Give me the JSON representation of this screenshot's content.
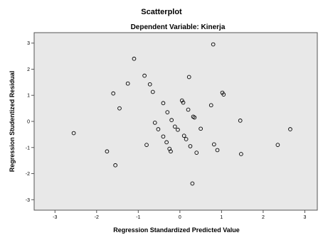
{
  "chart_data": {
    "type": "scatter",
    "title": "Scatterplot",
    "subtitle": "Dependent Variable: Kinerja",
    "xlabel": "Regression Standardized Predicted Value",
    "ylabel": "Regression Studentized Residual",
    "xlim": [
      -3.5,
      3.3
    ],
    "ylim": [
      -3.4,
      3.4
    ],
    "xticks": [
      -3,
      -2,
      -1,
      0,
      1,
      2,
      3
    ],
    "yticks": [
      -3,
      -2,
      -1,
      0,
      1,
      2,
      3
    ],
    "grid": false,
    "colors": {
      "plot_background": "#e8e8e8",
      "marker_stroke": "#000000",
      "axis": "#555555"
    },
    "points": [
      {
        "x": -2.55,
        "y": -0.45
      },
      {
        "x": -1.75,
        "y": -1.15
      },
      {
        "x": -1.6,
        "y": 1.07
      },
      {
        "x": -1.55,
        "y": -1.68
      },
      {
        "x": -1.45,
        "y": 0.5
      },
      {
        "x": -1.25,
        "y": 1.45
      },
      {
        "x": -1.1,
        "y": 2.4
      },
      {
        "x": -0.85,
        "y": 1.75
      },
      {
        "x": -0.8,
        "y": -0.9
      },
      {
        "x": -0.72,
        "y": 1.42
      },
      {
        "x": -0.65,
        "y": 1.13
      },
      {
        "x": -0.6,
        "y": -0.05
      },
      {
        "x": -0.52,
        "y": -0.3
      },
      {
        "x": -0.4,
        "y": 0.7
      },
      {
        "x": -0.4,
        "y": -0.58
      },
      {
        "x": -0.32,
        "y": -0.8
      },
      {
        "x": -0.3,
        "y": 0.35
      },
      {
        "x": -0.25,
        "y": -1.05
      },
      {
        "x": -0.22,
        "y": -1.15
      },
      {
        "x": -0.2,
        "y": 0.05
      },
      {
        "x": -0.12,
        "y": -0.2
      },
      {
        "x": -0.05,
        "y": -0.32
      },
      {
        "x": 0.05,
        "y": 0.8
      },
      {
        "x": 0.08,
        "y": 0.72
      },
      {
        "x": 0.1,
        "y": -0.55
      },
      {
        "x": 0.15,
        "y": -0.68
      },
      {
        "x": 0.2,
        "y": 0.45
      },
      {
        "x": 0.22,
        "y": 1.7
      },
      {
        "x": 0.25,
        "y": -0.95
      },
      {
        "x": 0.32,
        "y": 0.18
      },
      {
        "x": 0.35,
        "y": 0.15
      },
      {
        "x": 0.4,
        "y": -1.2
      },
      {
        "x": 0.5,
        "y": -0.28
      },
      {
        "x": 0.3,
        "y": -2.38
      },
      {
        "x": 0.75,
        "y": 0.62
      },
      {
        "x": 0.8,
        "y": 2.95
      },
      {
        "x": 0.82,
        "y": -0.88
      },
      {
        "x": 0.9,
        "y": -1.1
      },
      {
        "x": 1.02,
        "y": 1.1
      },
      {
        "x": 1.05,
        "y": 1.03
      },
      {
        "x": 1.45,
        "y": 0.03
      },
      {
        "x": 1.47,
        "y": -1.25
      },
      {
        "x": 2.35,
        "y": -0.9
      },
      {
        "x": 2.65,
        "y": -0.3
      }
    ]
  }
}
